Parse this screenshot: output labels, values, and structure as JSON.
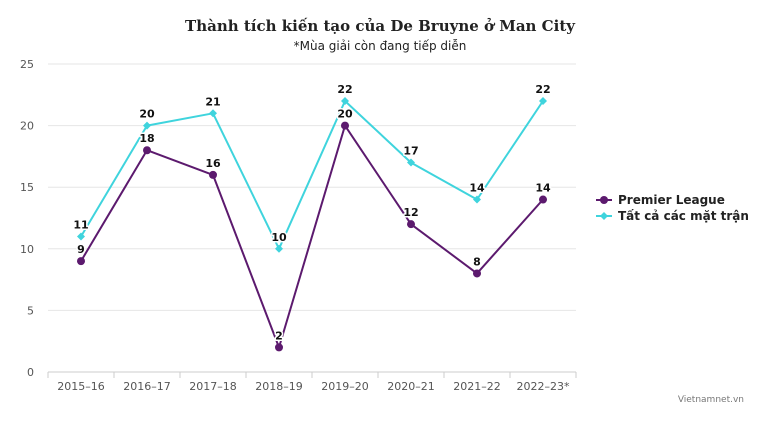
{
  "chart_data": {
    "type": "line",
    "title": "Thành tích kiến tạo của De Bruyne ở Man City",
    "subtitle": "*Mùa giải còn đang tiếp diễn",
    "categories": [
      "2015–16",
      "2016–17",
      "2017–18",
      "2018–19",
      "2019–20",
      "2020–21",
      "2021–22",
      "2022–23*"
    ],
    "ylim": [
      0,
      25
    ],
    "yticks": [
      0,
      5,
      10,
      15,
      20,
      25
    ],
    "grid": true,
    "legend_position": "right",
    "series": [
      {
        "name": "Premier League",
        "color": "#5c1a6e",
        "marker": "circle",
        "values": [
          9,
          18,
          16,
          2,
          20,
          12,
          8,
          14
        ]
      },
      {
        "name": "Tất cả các mặt trận",
        "color": "#3fd4dd",
        "marker": "diamond",
        "values": [
          11,
          20,
          21,
          10,
          22,
          17,
          14,
          22
        ]
      }
    ]
  },
  "credit": "Vietnamnet.vn"
}
